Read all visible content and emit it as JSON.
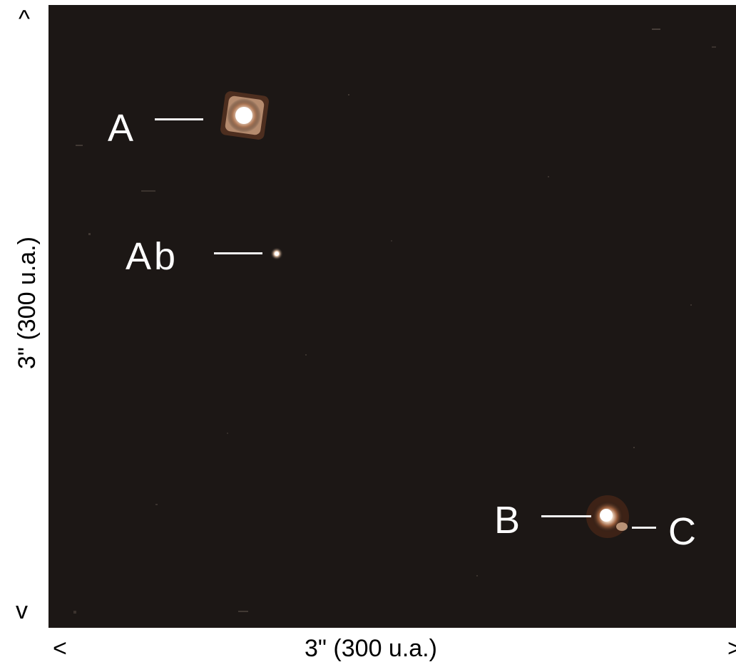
{
  "image": {
    "description_colors": {
      "sky": "#1c1715",
      "star_glow": "#c9a58a",
      "star_core": "#ffffff"
    },
    "labels": {
      "a": "A",
      "ab": "Ab",
      "b": "B",
      "c": "C"
    }
  },
  "scale": {
    "horizontal": "3\"  (300 u.a.)",
    "vertical": "3\"  (300 u.a.)",
    "arrow_left": "<",
    "arrow_right": ">",
    "arrow_up": "^",
    "arrow_down": "v"
  }
}
